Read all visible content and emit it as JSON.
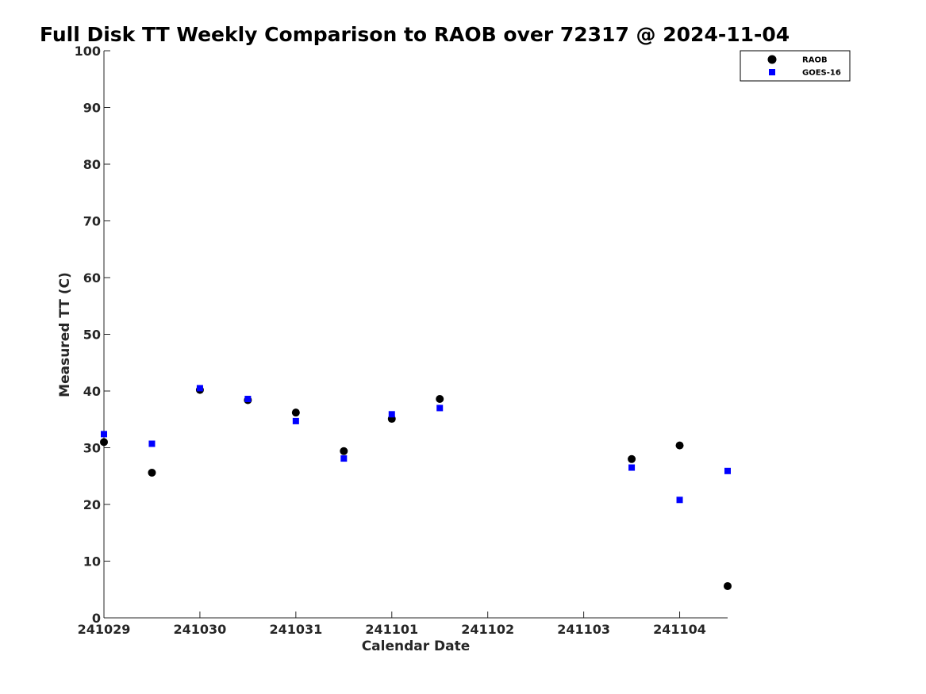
{
  "chart_data": {
    "type": "scatter",
    "title": "Full Disk TT Weekly Comparison to RAOB over 72317 @ 2024-11-04",
    "xlabel": "Calendar Date",
    "ylabel": "Measured TT (C)",
    "x_ticks": [
      "241029",
      "241030",
      "241031",
      "241101",
      "241102",
      "241103",
      "241104"
    ],
    "xlim": [
      "241029",
      "241104 12:00"
    ],
    "ylim": [
      0,
      100
    ],
    "y_ticks": [
      "0",
      "10",
      "20",
      "30",
      "40",
      "50",
      "60",
      "70",
      "80",
      "90",
      "100"
    ],
    "grid": false,
    "legend_position": "top-right",
    "series": [
      {
        "name": "RAOB",
        "marker": "circle",
        "color": "#000000",
        "points": [
          {
            "x": "241029 00:00",
            "y": 31.0
          },
          {
            "x": "241029 12:00",
            "y": 25.6
          },
          {
            "x": "241030 00:00",
            "y": 40.2
          },
          {
            "x": "241030 12:00",
            "y": 38.4
          },
          {
            "x": "241031 00:00",
            "y": 36.2
          },
          {
            "x": "241031 12:00",
            "y": 29.4
          },
          {
            "x": "241101 00:00",
            "y": 35.1
          },
          {
            "x": "241101 12:00",
            "y": 38.6
          },
          {
            "x": "241103 12:00",
            "y": 28.0
          },
          {
            "x": "241104 00:00",
            "y": 30.4
          },
          {
            "x": "241104 12:00",
            "y": 5.6
          }
        ]
      },
      {
        "name": "GOES-16",
        "marker": "square",
        "color": "#0000ff",
        "points": [
          {
            "x": "241029 00:00",
            "y": 32.4
          },
          {
            "x": "241029 12:00",
            "y": 30.7
          },
          {
            "x": "241030 00:00",
            "y": 40.5
          },
          {
            "x": "241030 12:00",
            "y": 38.6
          },
          {
            "x": "241031 00:00",
            "y": 34.7
          },
          {
            "x": "241031 12:00",
            "y": 28.1
          },
          {
            "x": "241101 00:00",
            "y": 35.9
          },
          {
            "x": "241101 12:00",
            "y": 37.0
          },
          {
            "x": "241103 12:00",
            "y": 26.5
          },
          {
            "x": "241104 00:00",
            "y": 20.8
          },
          {
            "x": "241104 12:00",
            "y": 25.9
          }
        ]
      }
    ]
  }
}
